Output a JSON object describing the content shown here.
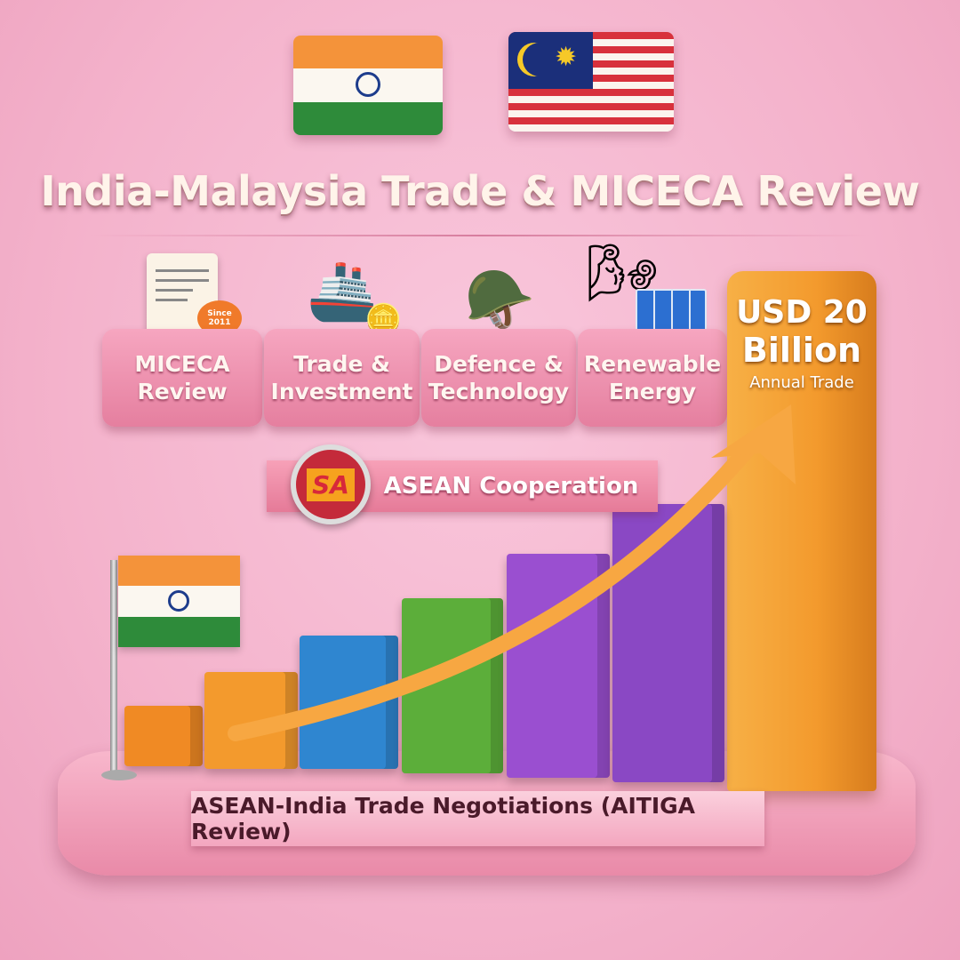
{
  "title": "India-Malaysia Trade & MICECA Review",
  "categories": [
    {
      "label_line1": "MICECA",
      "label_line2": "Review",
      "icon": "document-icon",
      "stamp": "Since 2011"
    },
    {
      "label_line1": "Trade &",
      "label_line2": "Investment",
      "icon": "cargo-ship-icon"
    },
    {
      "label_line1": "Defence &",
      "label_line2": "Technology",
      "icon": "tank-icon"
    },
    {
      "label_line1": "Renewable",
      "label_line2": "Energy",
      "icon": "wind-solar-icon"
    }
  ],
  "highlight": {
    "line1": "USD 20",
    "line2": "Billion",
    "line3": "Annual Trade"
  },
  "asean_ribbon": {
    "label": "ASEAN Cooperation",
    "logo_text": "SA"
  },
  "bottom_ribbon": {
    "label": "ASEAN-India Trade Negotiations (AITIGA Review)"
  },
  "colors": {
    "background": "#f4b3cc",
    "highlight_bar": "#f39a2d",
    "bars": [
      "#f08a24",
      "#f39a2d",
      "#2f86d0",
      "#5cae3a",
      "#9a4fd0",
      "#8a48c4"
    ]
  },
  "growth_bar_levels": [
    1,
    1.6,
    2.2,
    2.9,
    3.7,
    4.6,
    8.6
  ]
}
